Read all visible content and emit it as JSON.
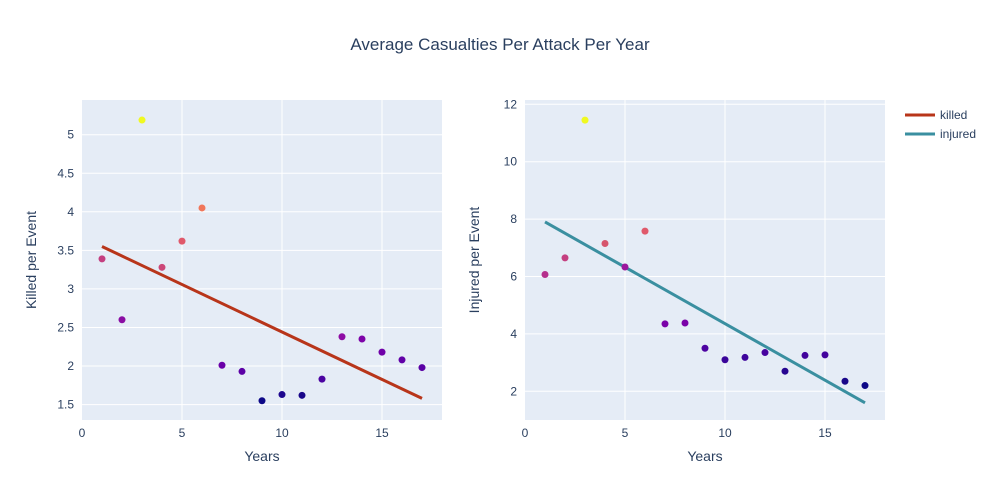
{
  "chart_data": {
    "title": "Average Casualties Per Attack Per Year",
    "legend": {
      "placement": "top-right",
      "entries": [
        {
          "name": "killed",
          "color": "#b8351a"
        },
        {
          "name": "injured",
          "color": "#3a8fa0"
        }
      ]
    },
    "subplots": [
      {
        "type": "scatter",
        "xlabel": "Years",
        "ylabel": "Killed per Event",
        "xlim": [
          0,
          18
        ],
        "ylim": [
          1.3,
          5.45
        ],
        "xticks": [
          0,
          5,
          10,
          15
        ],
        "yticks": [
          1.5,
          2,
          2.5,
          3,
          3.5,
          4,
          4.5,
          5
        ],
        "points": [
          {
            "x": 1,
            "y": 3.39,
            "color": "#c43f80"
          },
          {
            "x": 2,
            "y": 2.6,
            "color": "#8a0da3"
          },
          {
            "x": 3,
            "y": 5.19,
            "color": "#f0f921"
          },
          {
            "x": 4,
            "y": 3.28,
            "color": "#cc4778"
          },
          {
            "x": 5,
            "y": 3.62,
            "color": "#e0596b"
          },
          {
            "x": 6,
            "y": 4.05,
            "color": "#f0765a"
          },
          {
            "x": 7,
            "y": 2.01,
            "color": "#6a00a8"
          },
          {
            "x": 8,
            "y": 1.93,
            "color": "#5c01a6"
          },
          {
            "x": 9,
            "y": 1.55,
            "color": "#0d0887"
          },
          {
            "x": 10,
            "y": 1.63,
            "color": "#1d068e"
          },
          {
            "x": 11,
            "y": 1.62,
            "color": "#180689"
          },
          {
            "x": 12,
            "y": 1.83,
            "color": "#4b03a1"
          },
          {
            "x": 13,
            "y": 2.38,
            "color": "#8e0ca4"
          },
          {
            "x": 14,
            "y": 2.35,
            "color": "#7d03a8"
          },
          {
            "x": 15,
            "y": 2.18,
            "color": "#6f00a8"
          },
          {
            "x": 16,
            "y": 2.08,
            "color": "#6100a7"
          },
          {
            "x": 17,
            "y": 1.98,
            "color": "#5a01a5"
          }
        ],
        "line": {
          "name": "killed",
          "x": [
            1,
            17
          ],
          "y": [
            3.55,
            1.58
          ],
          "color": "#b8351a"
        }
      },
      {
        "type": "scatter",
        "xlabel": "Years",
        "ylabel": "Injured per Event",
        "xlim": [
          0,
          18
        ],
        "ylim": [
          1.0,
          12.15
        ],
        "xticks": [
          0,
          5,
          10,
          15
        ],
        "yticks": [
          2,
          4,
          6,
          8,
          10,
          12
        ],
        "points": [
          {
            "x": 1,
            "y": 6.07,
            "color": "#b52f8c"
          },
          {
            "x": 2,
            "y": 6.65,
            "color": "#c43f80"
          },
          {
            "x": 3,
            "y": 11.45,
            "color": "#f0f921"
          },
          {
            "x": 4,
            "y": 7.15,
            "color": "#d6556d"
          },
          {
            "x": 5,
            "y": 6.33,
            "color": "#9c179e"
          },
          {
            "x": 6,
            "y": 7.58,
            "color": "#e0596b"
          },
          {
            "x": 7,
            "y": 4.35,
            "color": "#7a02a8"
          },
          {
            "x": 8,
            "y": 4.38,
            "color": "#7a02a8"
          },
          {
            "x": 9,
            "y": 3.5,
            "color": "#4c02a1"
          },
          {
            "x": 10,
            "y": 3.1,
            "color": "#3a049a"
          },
          {
            "x": 11,
            "y": 3.18,
            "color": "#3e049c"
          },
          {
            "x": 12,
            "y": 3.35,
            "color": "#47039f"
          },
          {
            "x": 13,
            "y": 2.7,
            "color": "#260591"
          },
          {
            "x": 14,
            "y": 3.25,
            "color": "#42039d"
          },
          {
            "x": 15,
            "y": 3.27,
            "color": "#42039d"
          },
          {
            "x": 16,
            "y": 2.35,
            "color": "#180689"
          },
          {
            "x": 17,
            "y": 2.2,
            "color": "#0d0887"
          }
        ],
        "line": {
          "name": "injured",
          "x": [
            1,
            17
          ],
          "y": [
            7.9,
            1.6
          ],
          "color": "#3a8fa0"
        }
      }
    ]
  }
}
